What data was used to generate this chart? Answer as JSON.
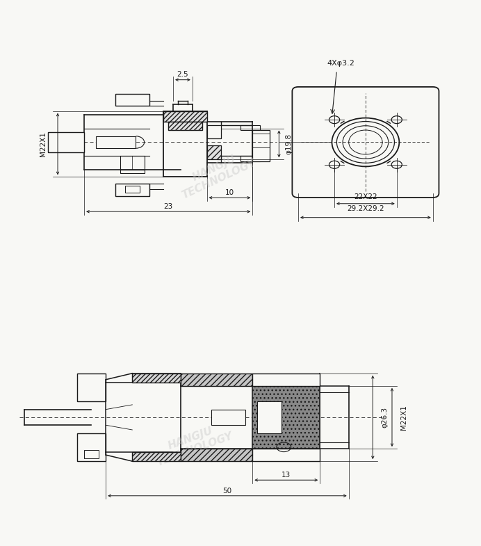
{
  "bg_color": "#f8f8f5",
  "line_color": "#1a1a1a",
  "dim_color": "#1a1a1a",
  "hatch_color": "#444444",
  "fig_width": 6.92,
  "fig_height": 7.85,
  "dims_top": {
    "label_25": "2.5",
    "label_198": "φ19.8",
    "label_10": "10",
    "label_23": "23",
    "label_M22X1": "M22X1",
    "label_4Xphi32": "4Xφ3.2",
    "label_22X22": "22X22",
    "label_292X292": "29.2X29.2"
  },
  "dims_bot": {
    "label_M22X1": "M22X1",
    "label_263": "φ26.3",
    "label_13": "13",
    "label_50": "50"
  },
  "wm_color": "#c8c8c8",
  "wm_alpha": 0.45
}
